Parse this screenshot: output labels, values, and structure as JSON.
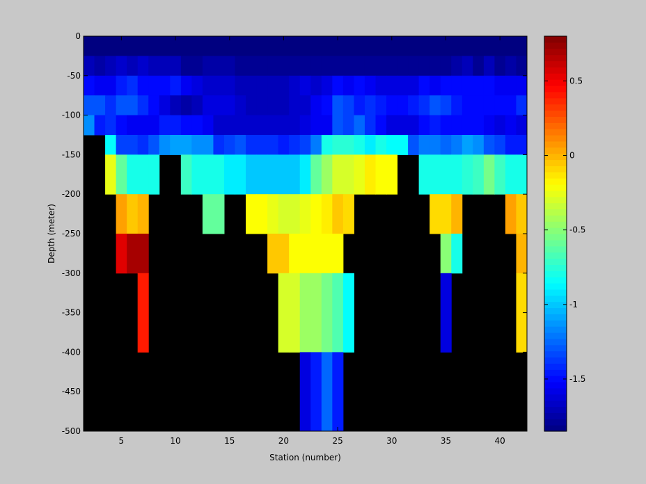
{
  "chart_data": {
    "type": "heatmap",
    "title": "",
    "xlabel": "Station (number)",
    "ylabel": "Depth (meter)",
    "xlim": [
      1.5,
      42.5
    ],
    "ylim": [
      -500,
      0
    ],
    "xticks": [
      5,
      10,
      15,
      20,
      25,
      30,
      35,
      40
    ],
    "yticks": [
      0,
      -50,
      -100,
      -150,
      -200,
      -250,
      -300,
      -350,
      -400,
      -450,
      -500
    ],
    "colorbar": {
      "range": [
        -1.85,
        0.8
      ],
      "ticks": [
        0.5,
        0,
        -0.5,
        -1,
        -1.5
      ],
      "colormap": "jet"
    },
    "background_color": "#000000",
    "stations": [
      2,
      3,
      4,
      5,
      6,
      7,
      8,
      9,
      10,
      11,
      12,
      13,
      14,
      15,
      16,
      17,
      18,
      19,
      20,
      21,
      22,
      23,
      24,
      25,
      26,
      27,
      28,
      29,
      30,
      31,
      32,
      33,
      34,
      35,
      36,
      37,
      38,
      39,
      40,
      41,
      42
    ],
    "depth_bins": [
      {
        "top": 0,
        "bottom": -25
      },
      {
        "top": -25,
        "bottom": -50
      },
      {
        "top": -50,
        "bottom": -75
      },
      {
        "top": -75,
        "bottom": -100
      },
      {
        "top": -100,
        "bottom": -125
      },
      {
        "top": -125,
        "bottom": -150
      },
      {
        "top": -150,
        "bottom": -200
      },
      {
        "top": -200,
        "bottom": -250
      },
      {
        "top": -250,
        "bottom": -300
      },
      {
        "top": -300,
        "bottom": -400
      },
      {
        "top": -400,
        "bottom": -500
      }
    ],
    "values": [
      [
        -1.85,
        -1.85,
        -1.85,
        -1.85,
        -1.85,
        -1.85,
        -1.85,
        -1.85,
        -1.85,
        -1.85,
        -1.85,
        -1.85,
        -1.85,
        -1.85,
        -1.85,
        -1.85,
        -1.85,
        -1.85,
        -1.85,
        -1.85,
        -1.85,
        -1.85,
        -1.85,
        -1.85,
        -1.85,
        -1.85,
        -1.85,
        -1.85,
        -1.85,
        -1.85,
        -1.85,
        -1.85,
        -1.85,
        -1.85,
        -1.85,
        -1.85,
        -1.85,
        -1.85,
        -1.85,
        -1.85,
        -1.85
      ],
      [
        -1.7,
        -1.75,
        -1.7,
        -1.65,
        -1.7,
        -1.65,
        -1.7,
        -1.7,
        -1.7,
        -1.8,
        -1.8,
        -1.75,
        -1.75,
        -1.75,
        -1.8,
        -1.8,
        -1.8,
        -1.8,
        -1.8,
        -1.8,
        -1.8,
        -1.8,
        -1.8,
        -1.8,
        -1.8,
        -1.8,
        -1.8,
        -1.8,
        -1.8,
        -1.8,
        -1.8,
        -1.8,
        -1.8,
        -1.8,
        -1.75,
        -1.7,
        -1.8,
        -1.7,
        -1.8,
        -1.75,
        -1.8
      ],
      [
        -1.5,
        -1.55,
        -1.55,
        -1.45,
        -1.4,
        -1.5,
        -1.5,
        -1.5,
        -1.45,
        -1.55,
        -1.6,
        -1.65,
        -1.65,
        -1.65,
        -1.7,
        -1.7,
        -1.7,
        -1.7,
        -1.7,
        -1.65,
        -1.6,
        -1.65,
        -1.6,
        -1.5,
        -1.55,
        -1.5,
        -1.55,
        -1.6,
        -1.6,
        -1.6,
        -1.6,
        -1.5,
        -1.55,
        -1.5,
        -1.5,
        -1.5,
        -1.5,
        -1.5,
        -1.55,
        -1.55,
        -1.55
      ],
      [
        -1.3,
        -1.3,
        -1.4,
        -1.3,
        -1.3,
        -1.4,
        -1.5,
        -1.6,
        -1.7,
        -1.75,
        -1.7,
        -1.6,
        -1.6,
        -1.6,
        -1.65,
        -1.7,
        -1.7,
        -1.7,
        -1.7,
        -1.65,
        -1.65,
        -1.55,
        -1.5,
        -1.3,
        -1.35,
        -1.45,
        -1.4,
        -1.45,
        -1.5,
        -1.5,
        -1.45,
        -1.4,
        -1.3,
        -1.35,
        -1.45,
        -1.5,
        -1.5,
        -1.5,
        -1.5,
        -1.5,
        -1.4
      ],
      [
        -1.15,
        -1.45,
        -1.4,
        -1.5,
        -1.55,
        -1.55,
        -1.55,
        -1.45,
        -1.45,
        -1.5,
        -1.5,
        -1.55,
        -1.65,
        -1.65,
        -1.65,
        -1.65,
        -1.65,
        -1.65,
        -1.65,
        -1.65,
        -1.6,
        -1.55,
        -1.55,
        -1.3,
        -1.35,
        -1.25,
        -1.4,
        -1.5,
        -1.6,
        -1.6,
        -1.6,
        -1.5,
        -1.45,
        -1.5,
        -1.5,
        -1.5,
        -1.5,
        -1.55,
        -1.6,
        -1.55,
        -1.6
      ],
      [
        null,
        null,
        -0.85,
        -1.35,
        -1.35,
        -1.4,
        -1.3,
        -1.15,
        -1.1,
        -1.1,
        -1.15,
        -1.15,
        -1.4,
        -1.35,
        -1.3,
        -1.4,
        -1.4,
        -1.4,
        -1.45,
        -1.4,
        -1.35,
        -1.2,
        -0.8,
        -0.75,
        -0.75,
        -0.8,
        -0.9,
        -0.8,
        -0.85,
        -0.85,
        -1.3,
        -1.2,
        -1.2,
        -1.25,
        -1.2,
        -1.1,
        -1.15,
        -1.3,
        -1.35,
        -1.45,
        -1.45
      ],
      [
        null,
        null,
        -0.25,
        -0.6,
        -0.8,
        -0.8,
        -0.8,
        null,
        null,
        -0.7,
        -0.8,
        -0.8,
        -0.8,
        -0.9,
        -0.9,
        -1.0,
        -1.0,
        -1.0,
        -1.0,
        -1.0,
        -0.9,
        -0.6,
        -0.45,
        -0.3,
        -0.3,
        -0.25,
        -0.15,
        -0.2,
        -0.2,
        null,
        null,
        -0.8,
        -0.8,
        -0.8,
        -0.8,
        -0.75,
        -0.7,
        -0.55,
        -0.7,
        -0.8,
        -0.8
      ],
      [
        null,
        null,
        null,
        0.05,
        -0.05,
        0.0,
        null,
        null,
        null,
        null,
        null,
        -0.6,
        -0.6,
        null,
        null,
        -0.2,
        -0.2,
        -0.25,
        -0.3,
        -0.3,
        -0.25,
        -0.2,
        -0.15,
        -0.05,
        -0.1,
        null,
        null,
        null,
        null,
        null,
        null,
        null,
        -0.1,
        -0.1,
        0.0,
        null,
        null,
        null,
        null,
        0.05,
        -0.05
      ],
      [
        null,
        null,
        null,
        0.55,
        0.7,
        0.7,
        null,
        null,
        null,
        null,
        null,
        null,
        null,
        null,
        null,
        null,
        null,
        -0.05,
        -0.05,
        -0.2,
        -0.2,
        -0.2,
        -0.2,
        -0.2,
        null,
        null,
        null,
        null,
        null,
        null,
        null,
        null,
        null,
        -0.5,
        -0.8,
        null,
        null,
        null,
        null,
        null,
        0.0
      ],
      [
        null,
        null,
        null,
        null,
        null,
        0.4,
        null,
        null,
        null,
        null,
        null,
        null,
        null,
        null,
        null,
        null,
        null,
        null,
        -0.3,
        -0.3,
        -0.45,
        -0.45,
        -0.55,
        -0.65,
        -0.85,
        null,
        null,
        null,
        null,
        null,
        null,
        null,
        null,
        -1.6,
        null,
        null,
        null,
        null,
        null,
        null,
        -0.1
      ],
      [
        null,
        null,
        null,
        null,
        null,
        null,
        null,
        null,
        null,
        null,
        null,
        null,
        null,
        null,
        null,
        null,
        null,
        null,
        null,
        null,
        -1.6,
        -1.45,
        -1.25,
        -1.45,
        null,
        null,
        null,
        null,
        null,
        null,
        null,
        null,
        null,
        null,
        null,
        null,
        null,
        null,
        null,
        null,
        null
      ]
    ]
  }
}
